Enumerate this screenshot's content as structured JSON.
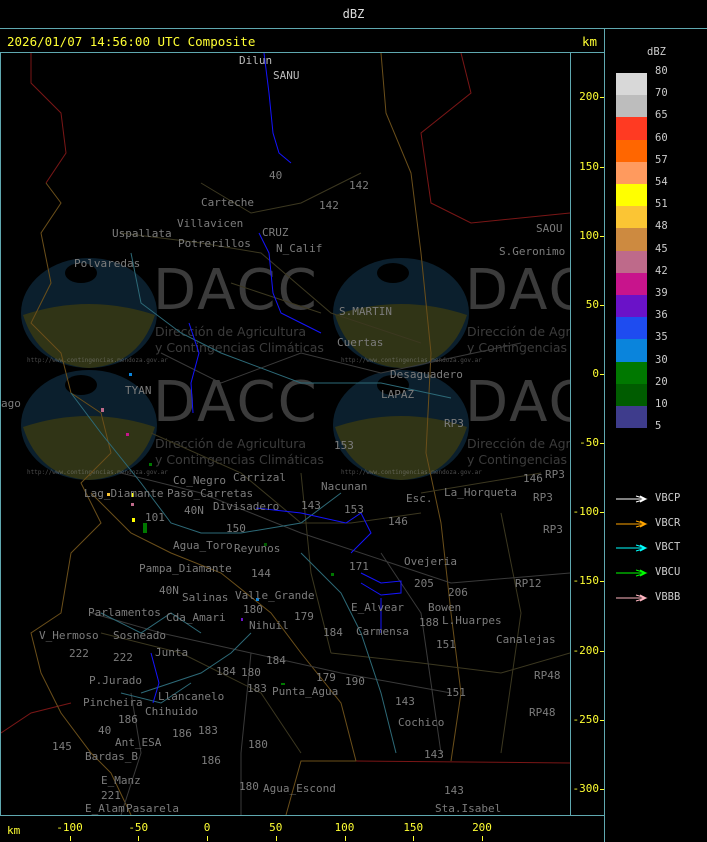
{
  "window": {
    "title": "dBZ"
  },
  "header": {
    "timestamp": "2026/01/07 14:56:00 UTC Composite",
    "unit_right": "km",
    "unit_bottom": "km"
  },
  "axes": {
    "x_ticks": [
      "-100",
      "-50",
      "0",
      "50",
      "100",
      "150",
      "200"
    ],
    "y_ticks": [
      "200",
      "150",
      "100",
      "50",
      "0",
      "-50",
      "-100",
      "-150",
      "-200",
      "-250",
      "-300"
    ]
  },
  "legend": {
    "title": "dBZ",
    "levels": [
      "80",
      "70",
      "65",
      "60",
      "57",
      "54",
      "51",
      "48",
      "45",
      "42",
      "39",
      "36",
      "35",
      "30",
      "20",
      "10",
      "5"
    ],
    "colors": [
      "#d8d8d8",
      "#bdbdbd",
      "#ff3a22",
      "#ff6600",
      "#ff9a5e",
      "#ffff00",
      "#fbc534",
      "#cd8a40",
      "#be6a8a",
      "#c8148c",
      "#6a12c8",
      "#1e4cf0",
      "#0a84dc",
      "#007800",
      "#005c00",
      "#3e3c8c"
    ],
    "radars": [
      {
        "name": "VBCP",
        "color": "#ffffff"
      },
      {
        "name": "VBCR",
        "color": "#ffa500"
      },
      {
        "name": "VBCT",
        "color": "#00ffff"
      },
      {
        "name": "VBCU",
        "color": "#00ff00"
      },
      {
        "name": "VBBB",
        "color": "#ffb6c1"
      }
    ]
  },
  "watermark": {
    "logo_text": "DACC",
    "line1": "Dirección de Agricultura",
    "line2": "y Contingencias Climáticas",
    "url": "http://www.contingencias.mendoza.gov.ar"
  },
  "map_labels": [
    "Dilun",
    "SANU",
    "Villavicen",
    "Uspallata",
    "Polvaredas",
    "N_Calif",
    "142",
    "142",
    "40",
    "Potrerillos",
    "CRUZ",
    "S.MARTIN",
    "Carteche",
    "Carrizal",
    "Cuertas",
    "S.Geronimo",
    "SAOU",
    "Desaguadero",
    "LAPAZ",
    "146",
    "RP3",
    "RP3",
    "RP3",
    "TYAN",
    "153",
    "Nacunan",
    "La_Horqueta",
    "Paso_Carretas",
    "Lag_Diamante",
    "Co_Negro",
    "Divisadero",
    "40N",
    "143",
    "Esc.",
    "146",
    "153",
    "101",
    "150",
    "RP3",
    "Agua_Toro",
    "Reyunos",
    "171",
    "Ovejeria",
    "205",
    "206",
    "RP12",
    "Pampa_Diamante",
    "144",
    "Valle_Grande",
    "40N",
    "Salinas",
    "180",
    "Cda_Amari",
    "Parlamentos",
    "Sosneado",
    "Nihuil",
    "179",
    "E_Alvear",
    "Bowen",
    "188",
    "L.Huarpes",
    "Carmensa",
    "184",
    "151",
    "Canalejas",
    "V_Hermoso",
    "222",
    "222",
    "Junta",
    "180",
    "184",
    "184",
    "179",
    "190",
    "Punta_Agua",
    "151",
    "RP48",
    "P.Jurado",
    "Pincheira",
    "Llancanelo",
    "183",
    "143",
    "RP48",
    "Chihuido",
    "186",
    "186",
    "183",
    "Cochico",
    "40",
    "Ant_ESA",
    "145",
    "Bardas_B",
    "180",
    "143",
    "186",
    "E_Manz",
    "221",
    "E_Alam",
    "Pasarela",
    "180",
    "Agua_Escond",
    "143",
    "Sta.Isabel",
    "ago"
  ]
}
